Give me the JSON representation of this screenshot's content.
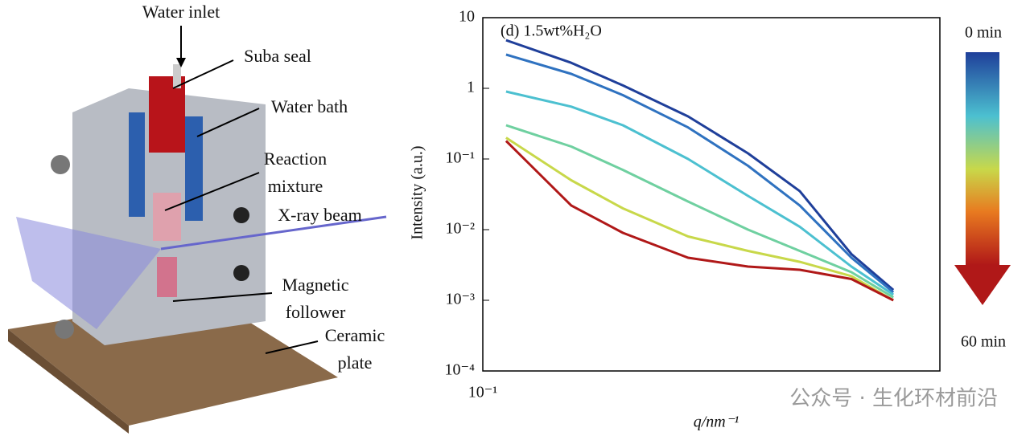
{
  "diagram": {
    "labels": [
      "Water inlet",
      "Suba seal",
      "Water bath",
      "Reaction mixture",
      "X-ray beam",
      "Magnetic follower",
      "Ceramic plate"
    ]
  },
  "chart_data": {
    "type": "line",
    "panel_label": "(d) 1.5wt%H₂O",
    "xlabel": "q/nm⁻¹",
    "ylabel": "Intensity (a.u.)",
    "xscale": "log",
    "yscale": "log",
    "xlim": [
      0.1,
      3.6
    ],
    "ylim": [
      0.0001,
      10
    ],
    "xticks": [
      {
        "value": 0.1,
        "label": "10⁻¹"
      }
    ],
    "yticks": [
      10,
      1,
      {
        "value": 0.1,
        "label": "10⁻¹"
      },
      {
        "value": 0.01,
        "label": "10⁻²"
      },
      {
        "value": 0.001,
        "label": "10⁻³"
      },
      {
        "value": 0.0001,
        "label": "10⁻⁴"
      }
    ],
    "x": [
      0.12,
      0.2,
      0.3,
      0.5,
      0.8,
      1.2,
      1.8,
      2.5
    ],
    "series": [
      {
        "color": "#1f3f9a",
        "values": [
          4.8,
          2.3,
          1.1,
          0.4,
          0.12,
          0.035,
          0.0045,
          0.0014
        ]
      },
      {
        "color": "#2f72c0",
        "values": [
          3,
          1.6,
          0.8,
          0.28,
          0.08,
          0.022,
          0.004,
          0.0013
        ]
      },
      {
        "color": "#4cc0d0",
        "values": [
          0.9,
          0.55,
          0.3,
          0.1,
          0.03,
          0.011,
          0.003,
          0.0012
        ]
      },
      {
        "color": "#6fd0a0",
        "values": [
          0.3,
          0.15,
          0.07,
          0.025,
          0.01,
          0.005,
          0.0025,
          0.0011
        ]
      },
      {
        "color": "#c8d84a",
        "values": [
          0.2,
          0.05,
          0.02,
          0.008,
          0.005,
          0.0035,
          0.0022,
          0.001
        ]
      },
      {
        "color": "#b01818",
        "values": [
          0.18,
          0.022,
          0.009,
          0.004,
          0.003,
          0.0027,
          0.002,
          0.001
        ]
      }
    ],
    "colorbar_labels": [
      "0 min",
      "60 min"
    ]
  },
  "watermark": "公众号 · 生化环材前沿"
}
